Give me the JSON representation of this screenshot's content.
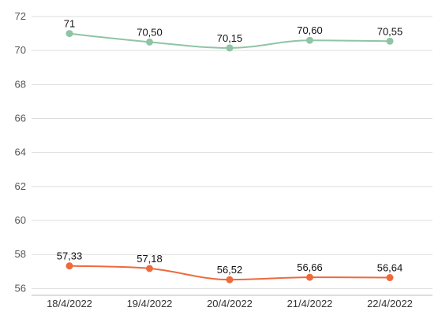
{
  "chart_data": {
    "type": "line",
    "title": "",
    "xlabel": "",
    "ylabel": "",
    "categories": [
      "18/4/2022",
      "19/4/2022",
      "20/4/2022",
      "21/4/2022",
      "22/4/2022"
    ],
    "ylim": [
      55.6,
      72
    ],
    "yticks": [
      56,
      58,
      60,
      62,
      64,
      66,
      68,
      70,
      72
    ],
    "grid": true,
    "legend": "none",
    "series": [
      {
        "values": [
          71,
          70.5,
          70.15,
          70.6,
          70.55
        ],
        "labels": [
          "71",
          "70,50",
          "70,15",
          "70,60",
          "70,55"
        ],
        "color": "#8fc4a4"
      },
      {
        "values": [
          57.33,
          57.18,
          56.52,
          56.66,
          56.64
        ],
        "labels": [
          "57,33",
          "57,18",
          "56,52",
          "56,66",
          "56,64"
        ],
        "color": "#ee6a3c"
      }
    ]
  }
}
